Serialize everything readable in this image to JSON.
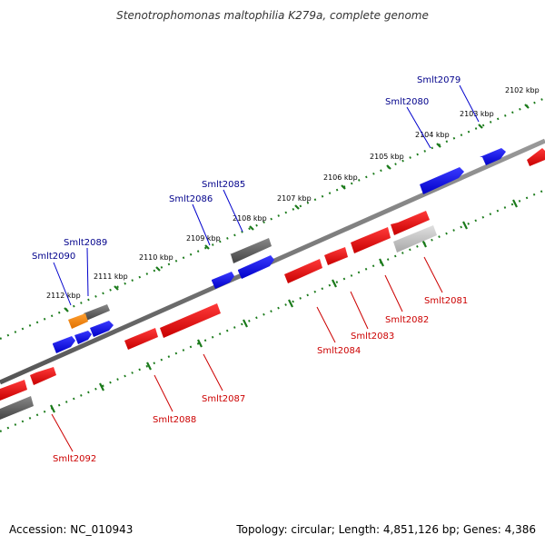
{
  "title": "Stenotrophomonas maltophilia K279a, complete genome",
  "footer": {
    "accession": "Accession: NC_010943",
    "topology": "Topology: circular; Length: 4,851,126 bp; Genes: 4,386"
  },
  "ruler_labels": [
    "2102 kbp",
    "2103 kbp",
    "2104 kbp",
    "2105 kbp",
    "2106 kbp",
    "2107 kbp",
    "2108 kbp",
    "2109 kbp",
    "2110 kbp",
    "2111 kbp",
    "2112 kbp"
  ],
  "genes_forward": [
    "Smlt2079",
    "Smlt2080",
    "Smlt2085",
    "Smlt2086",
    "Smlt2089",
    "Smlt2090"
  ],
  "genes_reverse": [
    "Smlt2081",
    "Smlt2082",
    "Smlt2083",
    "Smlt2084",
    "Smlt2087",
    "Smlt2088",
    "Smlt2092"
  ],
  "colors": {
    "forward_label": "#00008b",
    "reverse_label": "#cc0000",
    "forward_gene": "#0000ff",
    "reverse_gene": "#ff0000",
    "pseudo_gene": "#555555",
    "rna_gene": "#ff8c00",
    "ruler_dots": "#1a7a1a",
    "backbone": "#777777"
  }
}
